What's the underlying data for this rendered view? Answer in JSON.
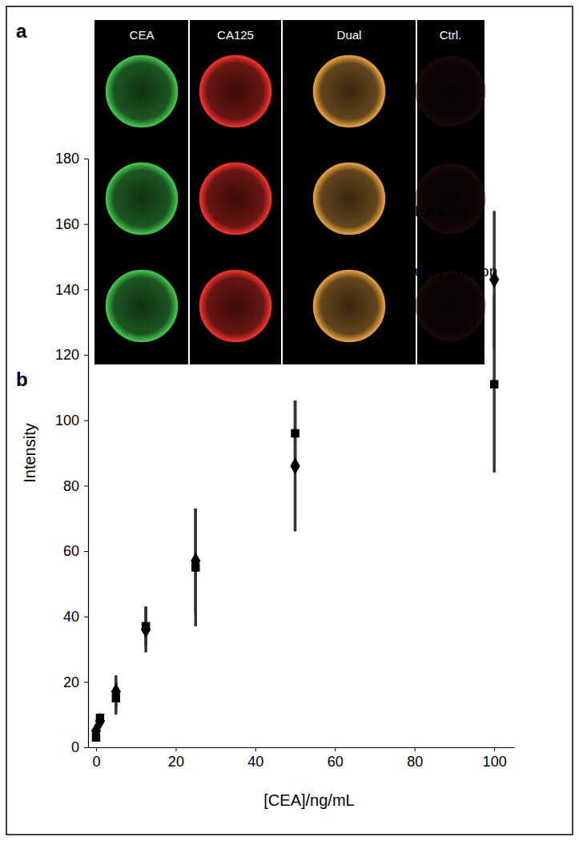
{
  "panel_labels": [
    "a",
    "b"
  ],
  "image_panel": {
    "columns": [
      "CEA",
      "CA125",
      "Dual",
      "Ctrl."
    ],
    "colors": [
      "#3fbf4a",
      "#e8302a",
      "#dc9a3c",
      "#3a1414"
    ]
  },
  "chart_data": {
    "type": "scatter",
    "x_label": "[CEA]/ng/mL",
    "y_label": "Intensity",
    "x": [
      0,
      1,
      5,
      12.5,
      25,
      50,
      100
    ],
    "xlim": [
      -2,
      105
    ],
    "xticks": [
      0,
      20,
      40,
      60,
      80,
      100
    ],
    "ylim": [
      0,
      180
    ],
    "yticks": [
      0,
      20,
      40,
      60,
      80,
      100,
      120,
      140,
      160,
      180
    ],
    "grid": false,
    "legend": "top-right",
    "series": [
      {
        "name": "CEA Only",
        "color": "#000000",
        "marker": "diamond",
        "values": [
          5,
          8,
          17,
          36,
          57,
          86,
          143
        ],
        "errors": [
          1,
          1.5,
          5,
          7,
          16,
          20,
          21
        ]
      },
      {
        "name": "Dual Function",
        "color": "#000000",
        "marker": "square",
        "values": [
          3,
          9,
          15,
          37,
          55,
          96,
          111
        ],
        "errors": [
          1,
          1,
          5,
          6,
          18,
          10,
          27
        ]
      }
    ]
  }
}
